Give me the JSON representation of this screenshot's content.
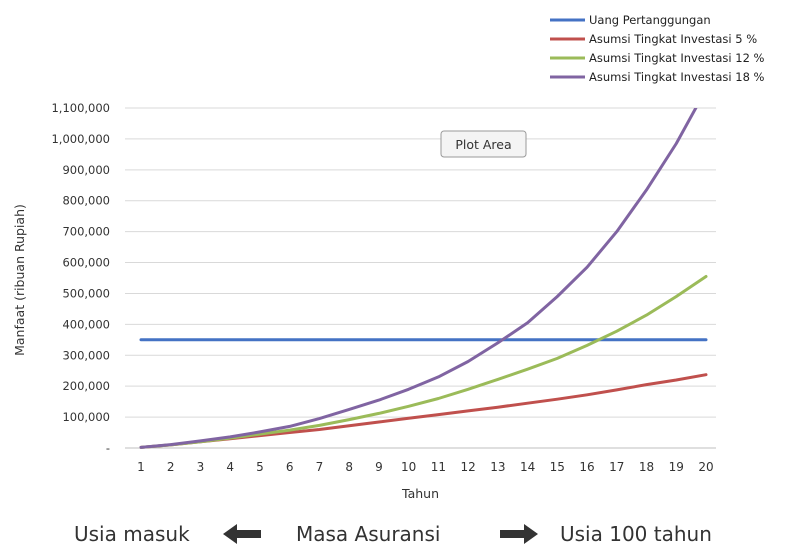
{
  "chart_data": {
    "type": "line",
    "title": "",
    "xlabel": "Tahun",
    "ylabel": "Manfaat (ribuan Rupiah)",
    "x": [
      1,
      2,
      3,
      4,
      5,
      6,
      7,
      8,
      9,
      10,
      11,
      12,
      13,
      14,
      15,
      16,
      17,
      18,
      19,
      20
    ],
    "ylim": [
      0,
      1100000
    ],
    "y_ticks": [
      0,
      100000,
      200000,
      300000,
      400000,
      500000,
      600000,
      700000,
      800000,
      900000,
      1000000,
      1100000
    ],
    "y_tick_labels": [
      "-",
      "100,000",
      "200,000",
      "300,000",
      "400,000",
      "500,000",
      "600,000",
      "700,000",
      "800,000",
      "900,000",
      "1,000,000",
      "1,100,000"
    ],
    "grid": true,
    "legend_position": "top-right",
    "annotation": "Plot Area",
    "series": [
      {
        "name": "Uang Pertanggungan",
        "color": "#4472C4",
        "values": [
          350000,
          350000,
          350000,
          350000,
          350000,
          350000,
          350000,
          350000,
          350000,
          350000,
          350000,
          350000,
          350000,
          350000,
          350000,
          350000,
          350000,
          350000,
          350000,
          350000
        ]
      },
      {
        "name": "Asumsi Tingkat Investasi 5 %",
        "color": "#C0504D",
        "values": [
          2000,
          10000,
          20000,
          30000,
          40000,
          50000,
          60000,
          72000,
          84000,
          96000,
          108000,
          120000,
          132000,
          145000,
          158000,
          172000,
          188000,
          205000,
          220000,
          237000
        ]
      },
      {
        "name": "Asumsi Tingkat Investasi 12 %",
        "color": "#9BBB59",
        "values": [
          2000,
          10000,
          20000,
          32000,
          45000,
          58000,
          73000,
          92000,
          112000,
          135000,
          160000,
          190000,
          222000,
          255000,
          290000,
          332000,
          378000,
          430000,
          490000,
          555000
        ]
      },
      {
        "name": "Asumsi Tingkat Investasi 18 %",
        "color": "#8064A2",
        "values": [
          2000,
          11000,
          23000,
          36000,
          52000,
          70000,
          95000,
          125000,
          155000,
          190000,
          230000,
          280000,
          340000,
          405000,
          490000,
          585000,
          700000,
          835000,
          985000,
          1160000
        ]
      }
    ]
  },
  "footer": {
    "left_label": "Usia masuk",
    "center_label": "Masa Asuransi",
    "right_label": "Usia 100 tahun",
    "left_arrow_icon": "arrow-left-icon",
    "right_arrow_icon": "arrow-right-icon"
  }
}
